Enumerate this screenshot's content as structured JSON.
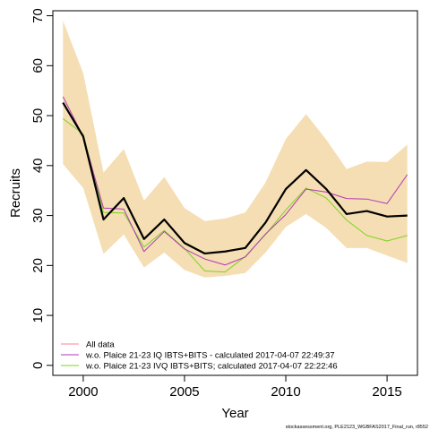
{
  "chart_data": {
    "type": "line",
    "xlabel": "Year",
    "ylabel": "Recruits",
    "xlim": [
      1998.5,
      2016.5
    ],
    "ylim": [
      -2,
      71
    ],
    "x_ticks": [
      2000,
      2005,
      2010,
      2015
    ],
    "y_ticks": [
      0,
      10,
      20,
      30,
      40,
      50,
      60,
      70
    ],
    "x": [
      1999,
      2000,
      2001,
      2002,
      2003,
      2004,
      2005,
      2006,
      2007,
      2008,
      2009,
      2010,
      2011,
      2012,
      2013,
      2014,
      2015,
      2016
    ],
    "band": {
      "color": "#f5deb3",
      "lower": [
        40.3,
        35.5,
        22.3,
        26.2,
        19.6,
        22.6,
        19.1,
        17.6,
        17.9,
        18.5,
        22.6,
        27.7,
        30.3,
        27.5,
        23.5,
        23.5,
        22.0,
        20.5
      ],
      "upper": [
        69.0,
        58.5,
        38.6,
        43.3,
        33.0,
        37.7,
        31.5,
        28.9,
        29.4,
        30.6,
        36.6,
        45.3,
        50.3,
        45.2,
        39.3,
        40.8,
        40.7,
        44.2
      ]
    },
    "series": [
      {
        "name": "All data",
        "color": "#000000",
        "width": 2.2,
        "values": [
          52.6,
          45.8,
          29.2,
          33.5,
          25.3,
          29.2,
          24.5,
          22.4,
          22.8,
          23.5,
          28.6,
          35.3,
          39.1,
          35.3,
          30.3,
          30.9,
          29.8,
          30.0
        ]
      },
      {
        "name": "w.o. Plaice 21-23 IQ IBTS+BITS - calculated 2017-04-07 22:49:37",
        "color": "#b03ab8",
        "width": 1,
        "values": [
          53.8,
          45.8,
          31.5,
          31.3,
          22.8,
          26.8,
          23.3,
          21.3,
          20.1,
          21.7,
          26.3,
          30.2,
          35.3,
          34.7,
          33.4,
          33.3,
          32.4,
          38.2
        ]
      },
      {
        "name": "w.o. Plaice 21-23 IVQ IBTS+BITS; calculated 2017-04-07 22:22:46",
        "color": "#7ed321",
        "width": 1,
        "values": [
          49.4,
          46.3,
          30.6,
          30.5,
          23.7,
          27.0,
          23.4,
          18.9,
          18.7,
          21.8,
          26.2,
          31.1,
          35.5,
          33.5,
          29.1,
          26.0,
          24.9,
          26.0
        ]
      }
    ],
    "legend": {
      "placement": "bottom-left",
      "entries": [
        {
          "label": "All data",
          "color": "#ff7f9a"
        },
        {
          "label": "w.o. Plaice 21-23 IQ IBTS+BITS - calculated 2017-04-07 22:49:37",
          "color": "#b03ab8"
        },
        {
          "label": "w.o. Plaice 21-23 IVQ IBTS+BITS; calculated 2017-04-07 22:22:46",
          "color": "#7ed321"
        }
      ]
    }
  },
  "footnote": "stockassessment.org, PLE2123_WGBFAS2017_Final_run, r8552"
}
